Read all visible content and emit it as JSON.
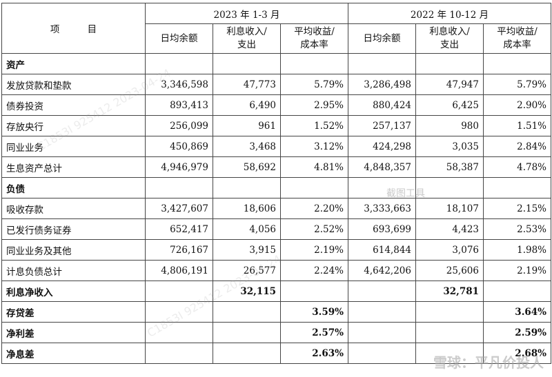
{
  "header": {
    "item_label": "项 目",
    "period1": "2023 年 1-3 月",
    "period2": "2022 年 10-12 月",
    "columns": [
      "日均余额",
      "利息收入/\n支出",
      "平均收益/\n成本率",
      "日均余额",
      "利息收入/\n支出",
      "平均收益/\n成本率"
    ]
  },
  "rows": [
    {
      "label": "资产",
      "bold": true,
      "cells": [
        "",
        "",
        "",
        "",
        "",
        ""
      ]
    },
    {
      "label": "发放贷款和垫款",
      "bold": false,
      "cells": [
        "3,346,598",
        "47,773",
        "5.79%",
        "3,286,498",
        "47,947",
        "5.79%"
      ]
    },
    {
      "label": "债券投资",
      "bold": false,
      "cells": [
        "893,413",
        "6,490",
        "2.95%",
        "880,424",
        "6,425",
        "2.90%"
      ]
    },
    {
      "label": "存放央行",
      "bold": false,
      "cells": [
        "256,099",
        "961",
        "1.52%",
        "257,137",
        "980",
        "1.51%"
      ]
    },
    {
      "label": "同业业务",
      "bold": false,
      "cells": [
        "450,869",
        "3,468",
        "3.12%",
        "424,298",
        "3,035",
        "2.84%"
      ]
    },
    {
      "label": "生息资产总计",
      "bold": false,
      "cells": [
        "4,946,979",
        "58,692",
        "4.81%",
        "4,848,357",
        "58,387",
        "4.78%"
      ]
    },
    {
      "label": "负债",
      "bold": true,
      "cells": [
        "",
        "",
        "",
        "",
        "",
        ""
      ]
    },
    {
      "label": "吸收存款",
      "bold": false,
      "cells": [
        "3,427,607",
        "18,606",
        "2.20%",
        "3,333,663",
        "18,107",
        "2.15%"
      ]
    },
    {
      "label": "已发行债务证券",
      "bold": false,
      "cells": [
        "652,417",
        "4,056",
        "2.52%",
        "693,699",
        "4,423",
        "2.53%"
      ]
    },
    {
      "label": "同业业务及其他",
      "bold": false,
      "cells": [
        "726,167",
        "3,915",
        "2.19%",
        "614,844",
        "3,076",
        "1.98%"
      ]
    },
    {
      "label": "计息负债总计",
      "bold": false,
      "cells": [
        "4,806,191",
        "26,577",
        "2.24%",
        "4,642,206",
        "25,606",
        "2.19%"
      ]
    },
    {
      "label": "利息净收入",
      "bold": true,
      "cells": [
        "",
        "32,115",
        "",
        "",
        "32,781",
        ""
      ]
    },
    {
      "label": "存贷差",
      "bold": true,
      "cells": [
        "",
        "",
        "3.59%",
        "",
        "",
        "3.64%"
      ]
    },
    {
      "label": "净利差",
      "bold": true,
      "cells": [
        "",
        "",
        "2.57%",
        "",
        "",
        "2.59%"
      ]
    },
    {
      "label": "净息差",
      "bold": true,
      "cells": [
        "",
        "",
        "2.63%",
        "",
        "",
        "2.68%"
      ]
    }
  ],
  "watermarks": {
    "diagonal": "C1853I 925412 2023-04-24",
    "tool": "截图工具",
    "footer": "雪球：平凡价投人"
  }
}
